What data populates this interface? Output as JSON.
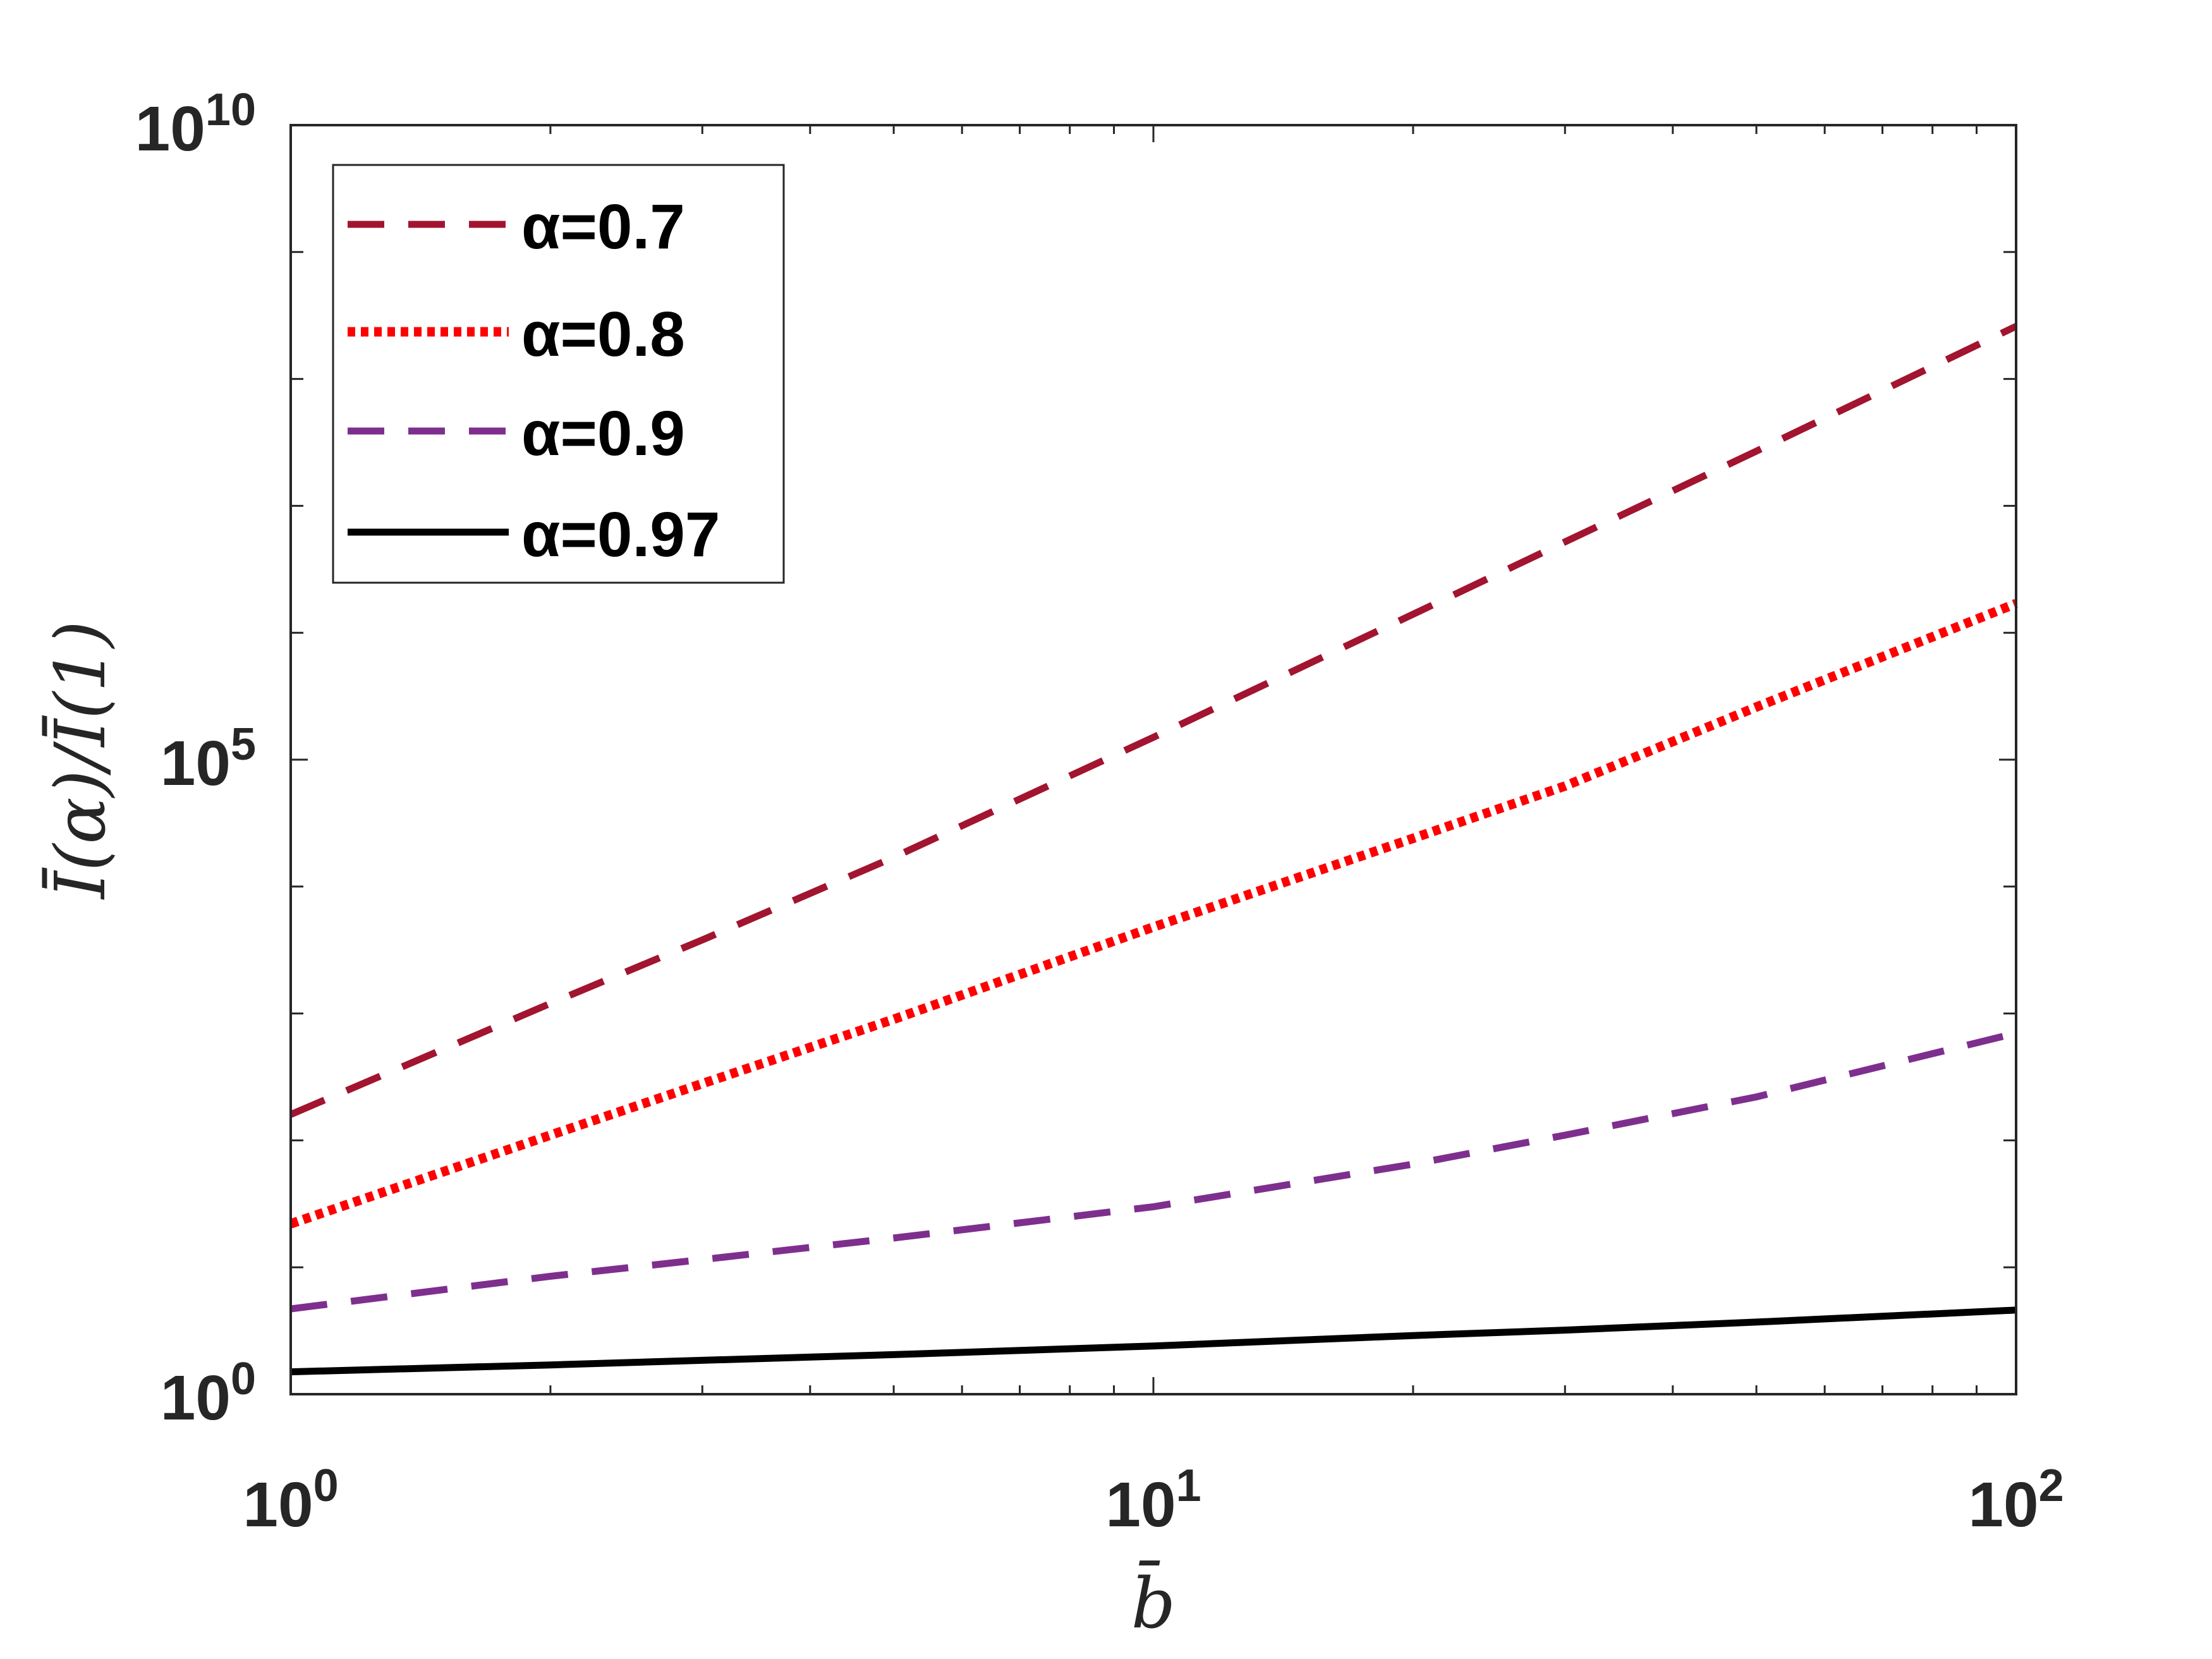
{
  "chart_data": {
    "type": "line",
    "xscale": "log",
    "yscale": "log",
    "xlim": [
      1,
      100
    ],
    "ylim": [
      1,
      10000000000
    ],
    "xlabel": "b̄",
    "ylabel": "Ī(α)/Ī(1)",
    "xticks": [
      {
        "value": 1,
        "base": "10",
        "exp": "0"
      },
      {
        "value": 10,
        "base": "10",
        "exp": "1"
      },
      {
        "value": 100,
        "base": "10",
        "exp": "2"
      }
    ],
    "yticks": [
      {
        "value": 1,
        "base": "10",
        "exp": "0"
      },
      {
        "value": 100000,
        "base": "10",
        "exp": "5"
      },
      {
        "value": 10000000000,
        "base": "10",
        "exp": "10"
      }
    ],
    "grid": false,
    "legend_position": "top-left",
    "series": [
      {
        "name": "α=0.7",
        "color": "#A2142F",
        "style": "dashed",
        "x": [
          1,
          2,
          3,
          5,
          10,
          20,
          30,
          50,
          100
        ],
        "y": [
          160,
          1200,
          3800,
          17000,
          150000,
          1400000,
          5200000,
          27000000,
          260000000
        ]
      },
      {
        "name": "α=0.8",
        "color": "#FF0000",
        "style": "dotted",
        "x": [
          1,
          2,
          3,
          5,
          10,
          20,
          30,
          50,
          100
        ],
        "y": [
          22,
          110,
          280,
          900,
          4800,
          24000,
          62000,
          260000,
          1700000
        ]
      },
      {
        "name": "α=0.9",
        "color": "#7E2F8E",
        "style": "dashed",
        "x": [
          1,
          2,
          3,
          5,
          10,
          20,
          30,
          50,
          100
        ],
        "y": [
          4.7,
          8.5,
          11.5,
          17,
          30,
          65,
          110,
          220,
          700
        ]
      },
      {
        "name": "α=0.97",
        "color": "#000000",
        "style": "solid",
        "x": [
          1,
          2,
          3,
          5,
          10,
          20,
          30,
          50,
          100
        ],
        "y": [
          1.5,
          1.7,
          1.85,
          2.05,
          2.4,
          2.9,
          3.2,
          3.7,
          4.6
        ]
      }
    ]
  }
}
